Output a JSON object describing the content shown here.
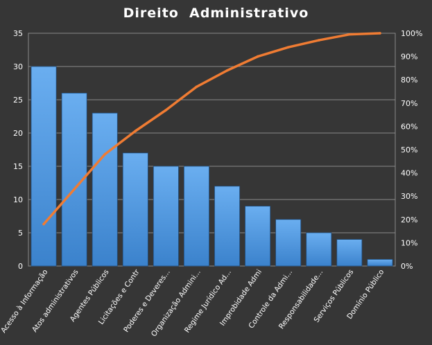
{
  "chart_data": {
    "type": "bar",
    "title": "Direito  Administrativo",
    "xlabel": "",
    "ylabel": "",
    "categories": [
      "Acesso à Informação",
      "Atos administrativos",
      "Agentes Públicos",
      "Licitações e Contr",
      "Poderes e Deveres...",
      "Organização Admini...",
      "Regime Jurídico Ad...",
      "Improbidade Admi",
      "Controle da Admi...",
      "Responsabilidade...",
      "Serviços Públicos",
      "Domínio Público"
    ],
    "series": [
      {
        "type": "bar",
        "axis": "left",
        "values": [
          30,
          26,
          23,
          17,
          15,
          15,
          12,
          9,
          7,
          5,
          4,
          1
        ]
      },
      {
        "type": "line",
        "axis": "right",
        "values": [
          18,
          33,
          48,
          58,
          67,
          77,
          84,
          90,
          94,
          97,
          99.5,
          100
        ]
      }
    ],
    "ylim": [
      0,
      35
    ],
    "yticks": [
      "0",
      "5",
      "10",
      "15",
      "20",
      "25",
      "30",
      "35"
    ],
    "y2lim": [
      0,
      100
    ],
    "y2ticks": [
      "0%",
      "10%",
      "20%",
      "30%",
      "40%",
      "50%",
      "60%",
      "70%",
      "80%",
      "90%",
      "100%"
    ],
    "grid": true,
    "legend": "none",
    "colors": {
      "bar": "#4a90d9",
      "line": "#f07c33",
      "background": "#363636",
      "grid": "#8a8a8a",
      "text": "#ffffff"
    }
  }
}
